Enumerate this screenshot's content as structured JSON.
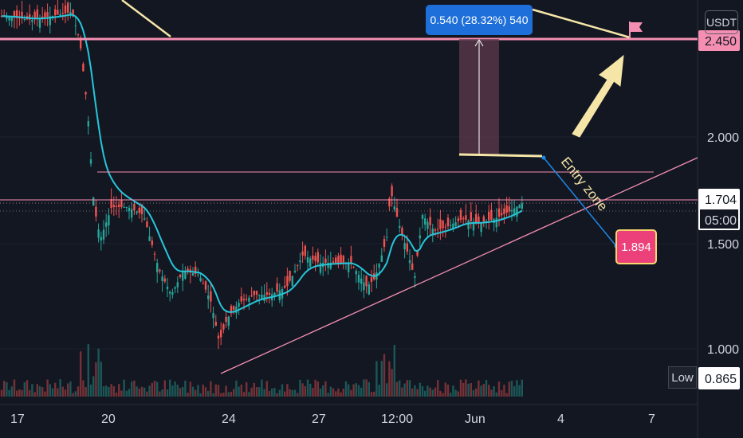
{
  "chart": {
    "currency": "USDT",
    "current_price": "1.704",
    "countdown": "05:00",
    "target_level": "2.450",
    "low_label": "Low",
    "low_value": "0.865",
    "measure_label": "0.540 (28.32%) 540",
    "target_callout": "1.894",
    "entry_text": "Entry zone",
    "price_ticks": [
      "2.000",
      "1.500",
      "1.000"
    ],
    "date_ticks": [
      "17",
      "20",
      "24",
      "27",
      "12:00",
      "Jun",
      "4",
      "7"
    ]
  },
  "colors": {
    "background": "#131722",
    "candle_up": "#26a69a",
    "candle_down": "#ef5350",
    "ma_line": "#26c6da",
    "target_line": "#f48fb1",
    "trendline": "#f48fb1",
    "annotation": "#f5e6a8",
    "price_tag": "#ffffff",
    "countdown_bg": "#131722",
    "target_tag": "#f48fb1"
  },
  "icons": {
    "flag": "flag-icon",
    "arrow": "arrow-up-right-icon"
  }
}
